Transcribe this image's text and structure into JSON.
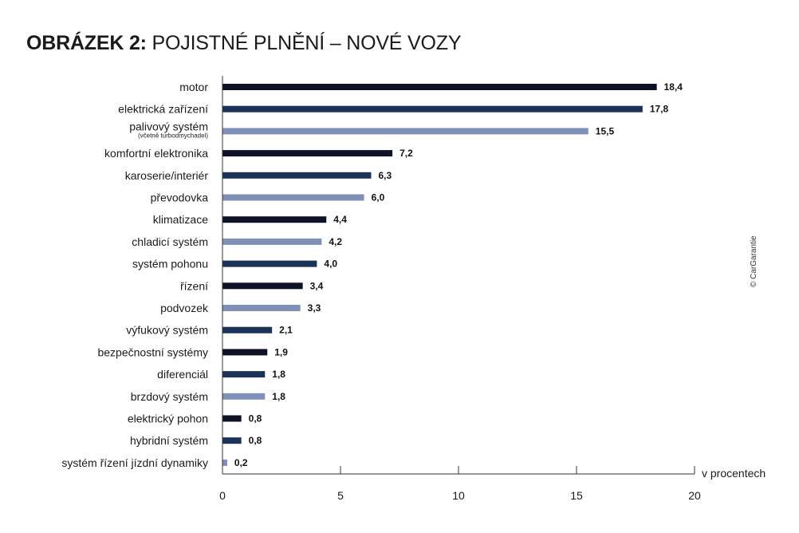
{
  "title": {
    "bold": "OBRÁZEK 2:",
    "rest": " POJISTNÉ PLNĚNÍ – NOVÉ VOZY"
  },
  "credit": "© CarGarantie",
  "colors": {
    "dark": "#0d1226",
    "navy": "#1b3358",
    "light": "#7f90b8",
    "axis": "#333333"
  },
  "chart_data": {
    "type": "bar",
    "orientation": "horizontal",
    "title": "OBRÁZEK 2: POJISTNÉ PLNĚNÍ – NOVÉ VOZY",
    "xlabel": "v procentech",
    "xlim": [
      0,
      20
    ],
    "xticks": [
      0,
      5,
      10,
      15,
      20
    ],
    "grid": false,
    "categories": [
      {
        "label": "motor",
        "value": 18.4,
        "value_label": "18,4",
        "color": "dark"
      },
      {
        "label": "elektrická zařízení",
        "value": 17.8,
        "value_label": "17,8",
        "color": "navy"
      },
      {
        "label": "palivový systém",
        "sublabel": "(včetně turbodmychadel)",
        "value": 15.5,
        "value_label": "15,5",
        "color": "light"
      },
      {
        "label": "komfortní elektronika",
        "value": 7.2,
        "value_label": "7,2",
        "color": "dark"
      },
      {
        "label": "karoserie/interiér",
        "value": 6.3,
        "value_label": "6,3",
        "color": "navy"
      },
      {
        "label": "převodovka",
        "value": 6.0,
        "value_label": "6,0",
        "color": "light"
      },
      {
        "label": "klimatizace",
        "value": 4.4,
        "value_label": "4,4",
        "color": "dark"
      },
      {
        "label": "chladicí systém",
        "value": 4.2,
        "value_label": "4,2",
        "color": "light"
      },
      {
        "label": "systém pohonu",
        "value": 4.0,
        "value_label": "4,0",
        "color": "navy"
      },
      {
        "label": "řízení",
        "value": 3.4,
        "value_label": "3,4",
        "color": "dark"
      },
      {
        "label": "podvozek",
        "value": 3.3,
        "value_label": "3,3",
        "color": "light"
      },
      {
        "label": "výfukový systém",
        "value": 2.1,
        "value_label": "2,1",
        "color": "navy"
      },
      {
        "label": "bezpečnostní systémy",
        "value": 1.9,
        "value_label": "1,9",
        "color": "dark"
      },
      {
        "label": "diferenciál",
        "value": 1.8,
        "value_label": "1,8",
        "color": "navy"
      },
      {
        "label": "brzdový systém",
        "value": 1.8,
        "value_label": "1,8",
        "color": "light"
      },
      {
        "label": "elektrický pohon",
        "value": 0.8,
        "value_label": "0,8",
        "color": "dark"
      },
      {
        "label": "hybridní systém",
        "value": 0.8,
        "value_label": "0,8",
        "color": "navy"
      },
      {
        "label": "systém řízení jízdní dynamiky",
        "value": 0.2,
        "value_label": "0,2",
        "color": "light"
      }
    ]
  }
}
